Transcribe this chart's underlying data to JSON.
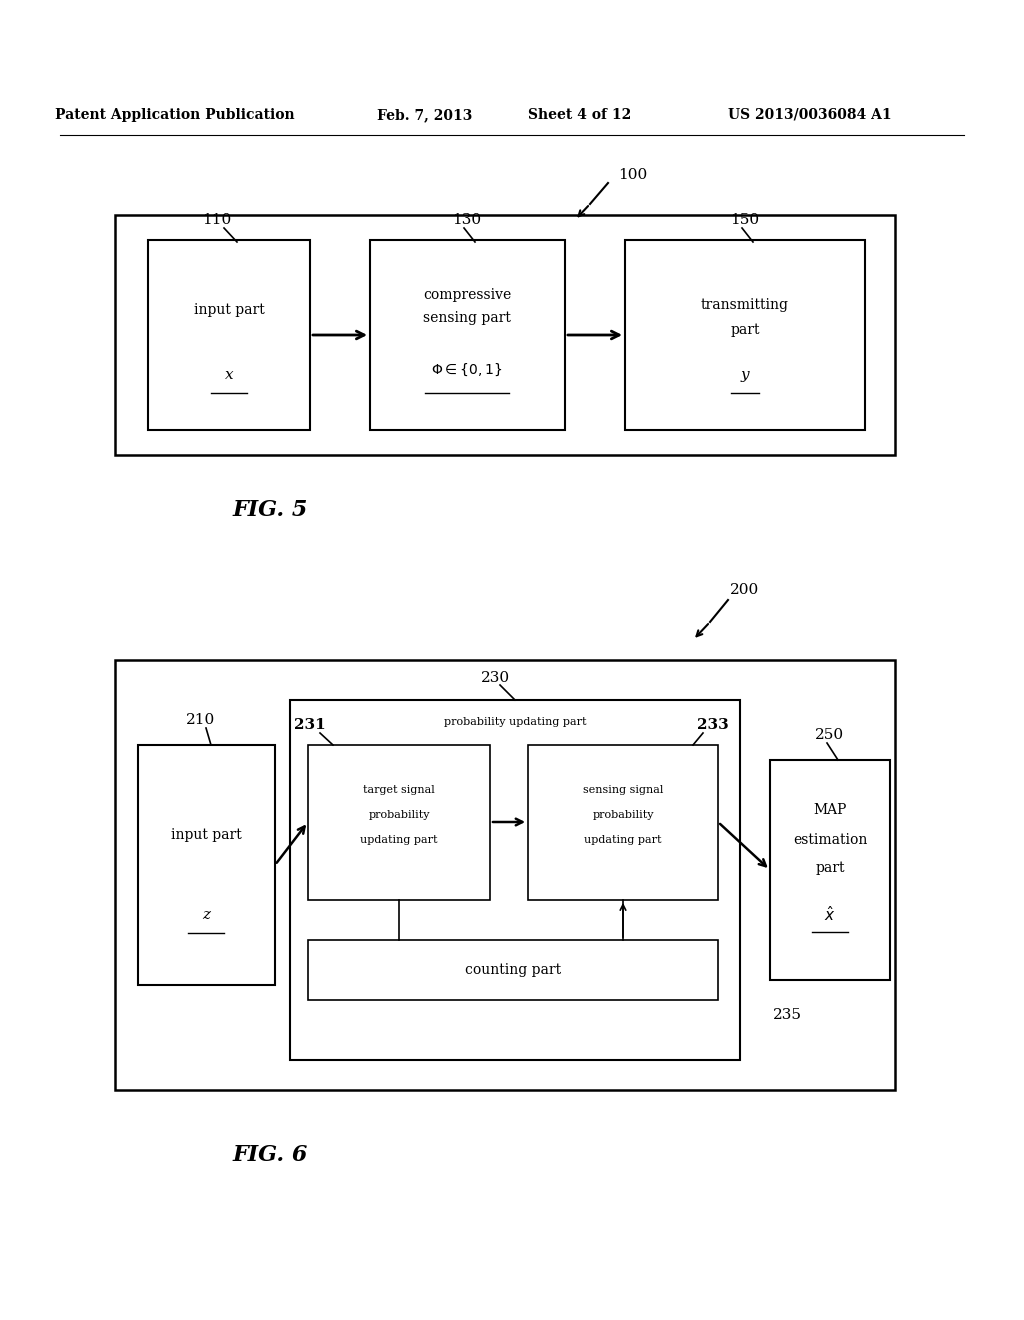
{
  "bg_color": "#ffffff",
  "header_text": "Patent Application Publication",
  "header_date": "Feb. 7, 2013",
  "header_sheet": "Sheet 4 of 12",
  "header_patent": "US 2013/0036084 A1",
  "fig5_label": "FIG. 5",
  "fig6_label": "FIG. 6"
}
